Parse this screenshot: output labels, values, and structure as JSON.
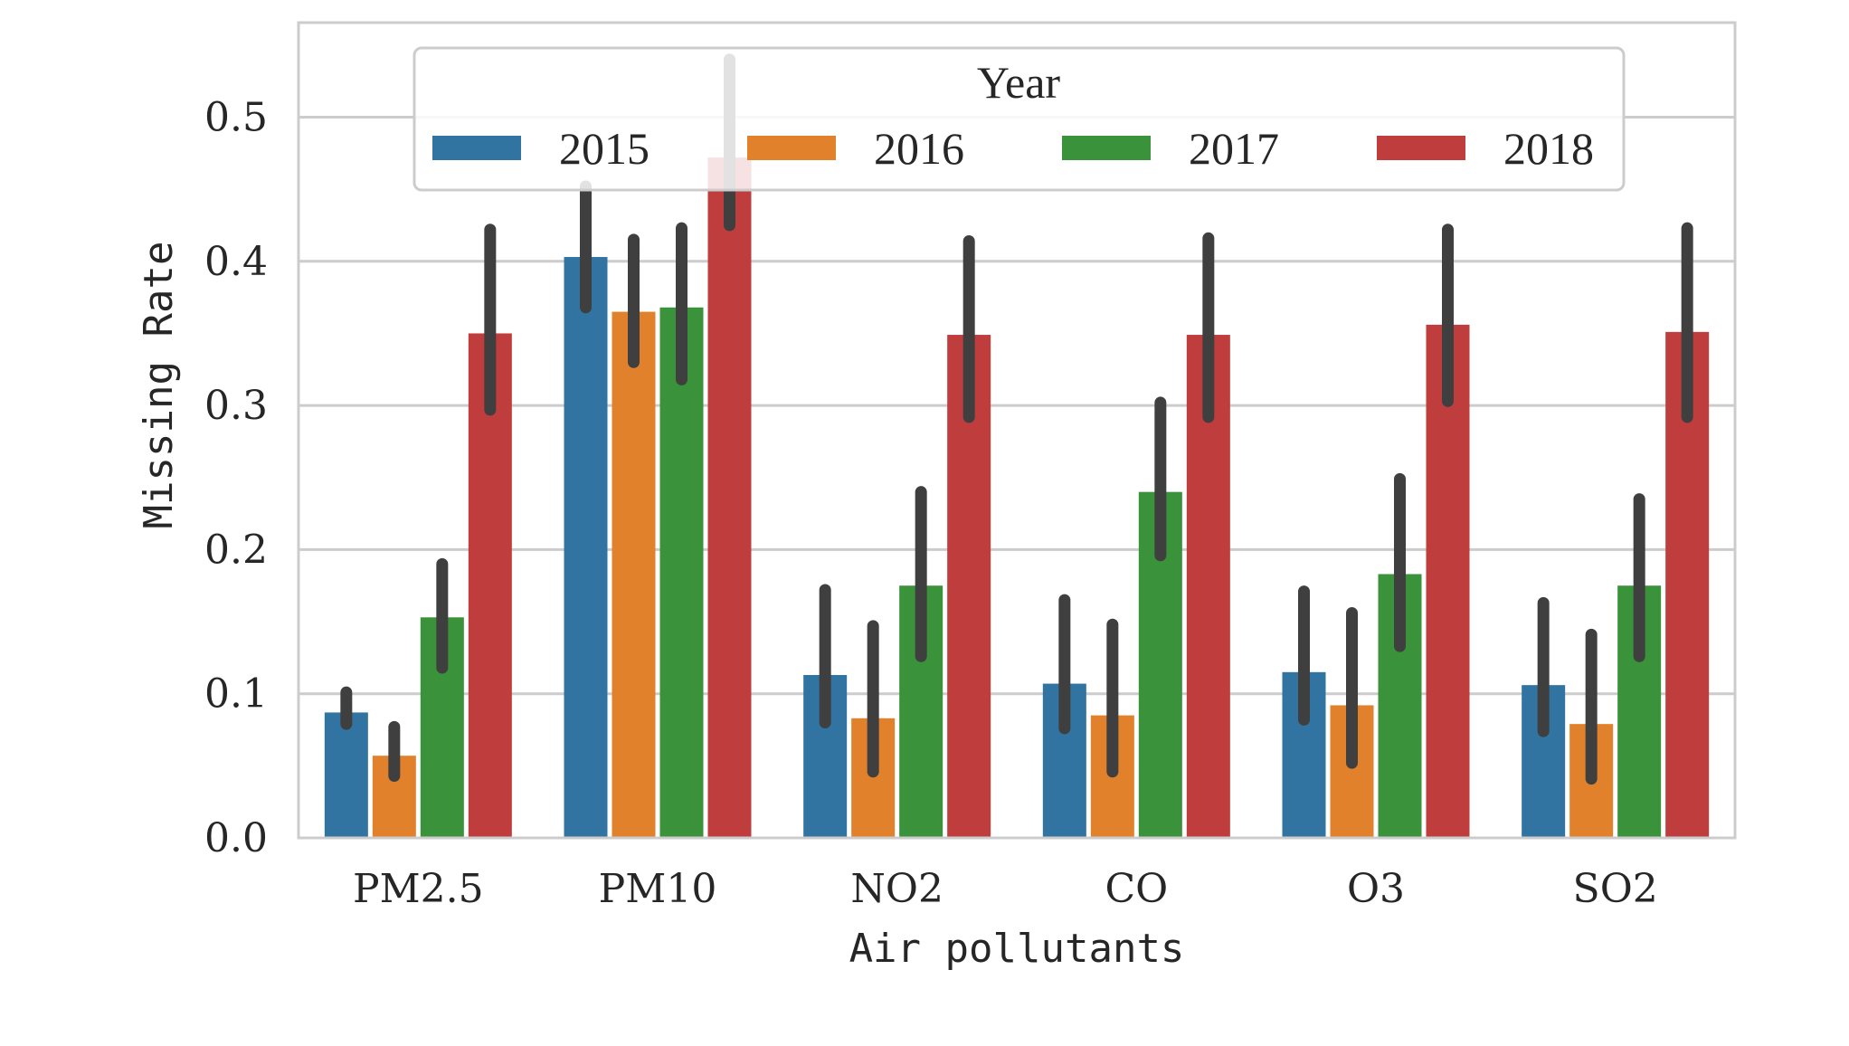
{
  "chart_data": {
    "type": "bar",
    "xlabel": "Air pollutants",
    "ylabel": "Missing Rate",
    "ylim": [
      0,
      0.56
    ],
    "yticks": [
      0.0,
      0.1,
      0.2,
      0.3,
      0.4,
      0.5
    ],
    "ytick_labels": [
      "0.0",
      "0.1",
      "0.2",
      "0.3",
      "0.4",
      "0.5"
    ],
    "grid": true,
    "legend": {
      "title": "Year",
      "placement": "top-center",
      "columns": 4
    },
    "categories": [
      "PM2.5",
      "PM10",
      "NO2",
      "CO",
      "O3",
      "SO2"
    ],
    "series": [
      {
        "name": "2015",
        "color": "#3274a1",
        "values": [
          0.087,
          0.403,
          0.113,
          0.107,
          0.115,
          0.106
        ],
        "err_low": [
          0.079,
          0.368,
          0.08,
          0.076,
          0.082,
          0.074
        ],
        "err_high": [
          0.101,
          0.452,
          0.172,
          0.165,
          0.171,
          0.163
        ]
      },
      {
        "name": "2016",
        "color": "#e1812c",
        "values": [
          0.057,
          0.365,
          0.083,
          0.085,
          0.092,
          0.079
        ],
        "err_low": [
          0.043,
          0.33,
          0.046,
          0.046,
          0.052,
          0.041
        ],
        "err_high": [
          0.077,
          0.415,
          0.147,
          0.148,
          0.156,
          0.141
        ]
      },
      {
        "name": "2017",
        "color": "#3a923a",
        "values": [
          0.153,
          0.368,
          0.175,
          0.24,
          0.183,
          0.175
        ],
        "err_low": [
          0.118,
          0.318,
          0.126,
          0.196,
          0.133,
          0.126
        ],
        "err_high": [
          0.19,
          0.423,
          0.24,
          0.302,
          0.249,
          0.235
        ]
      },
      {
        "name": "2018",
        "color": "#c03d3e",
        "values": [
          0.35,
          0.472,
          0.349,
          0.349,
          0.356,
          0.351
        ],
        "err_low": [
          0.297,
          0.425,
          0.292,
          0.292,
          0.303,
          0.292
        ],
        "err_high": [
          0.422,
          0.54,
          0.414,
          0.416,
          0.422,
          0.423
        ]
      }
    ]
  }
}
